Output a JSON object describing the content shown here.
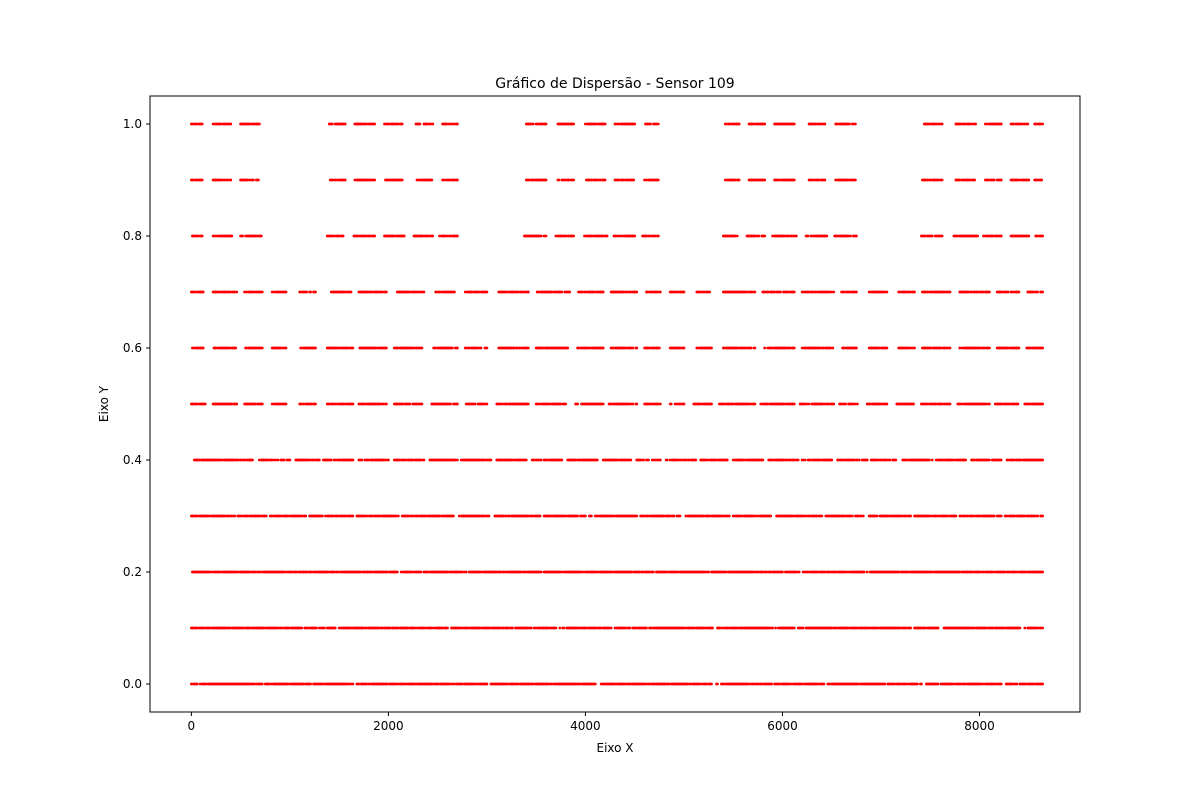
{
  "chart_data": {
    "type": "scatter",
    "title": "Gráfico de Dispersão - Sensor 109",
    "xlabel": "Eixo X",
    "ylabel": "Eixo Y",
    "xlim": [
      -420,
      9020
    ],
    "ylim": [
      -0.05,
      1.05
    ],
    "x_ticks": [
      0,
      2000,
      4000,
      6000,
      8000
    ],
    "x_tick_labels": [
      "0",
      "2000",
      "4000",
      "6000",
      "8000"
    ],
    "y_ticks": [
      0.0,
      0.2,
      0.4,
      0.6,
      0.8,
      1.0
    ],
    "y_tick_labels": [
      "0.0",
      "0.2",
      "0.4",
      "0.6",
      "0.8",
      "1.0"
    ],
    "grid": false,
    "legend": "none",
    "marker_color": "#ff0000",
    "x_extent": [
      0,
      8640
    ],
    "series": [
      {
        "y": 1.0,
        "x_segments": [
          [
            0,
            110
          ],
          [
            220,
            400
          ],
          [
            500,
            690
          ],
          [
            1400,
            1560
          ],
          [
            1660,
            1860
          ],
          [
            1960,
            2140
          ],
          [
            2280,
            2450
          ],
          [
            2550,
            2700
          ],
          [
            3400,
            3600
          ],
          [
            3720,
            3880
          ],
          [
            4000,
            4200
          ],
          [
            4300,
            4500
          ],
          [
            4600,
            4740
          ],
          [
            5420,
            5560
          ],
          [
            5660,
            5820
          ],
          [
            5920,
            6120
          ],
          [
            6260,
            6430
          ],
          [
            6540,
            6740
          ],
          [
            7420,
            7620
          ],
          [
            7760,
            7960
          ],
          [
            8060,
            8220
          ],
          [
            8320,
            8500
          ],
          [
            8560,
            8640
          ]
        ]
      },
      {
        "y": 0.9,
        "x_segments": [
          [
            0,
            110
          ],
          [
            220,
            400
          ],
          [
            500,
            690
          ],
          [
            1400,
            1560
          ],
          [
            1660,
            1860
          ],
          [
            1960,
            2140
          ],
          [
            2280,
            2450
          ],
          [
            2550,
            2700
          ],
          [
            3400,
            3600
          ],
          [
            3720,
            3880
          ],
          [
            4000,
            4200
          ],
          [
            4300,
            4500
          ],
          [
            4600,
            4740
          ],
          [
            5420,
            5560
          ],
          [
            5660,
            5820
          ],
          [
            5920,
            6120
          ],
          [
            6260,
            6430
          ],
          [
            6540,
            6740
          ],
          [
            7420,
            7620
          ],
          [
            7760,
            7960
          ],
          [
            8060,
            8220
          ],
          [
            8320,
            8500
          ],
          [
            8560,
            8640
          ]
        ]
      },
      {
        "y": 0.8,
        "x_segments": [
          [
            0,
            120
          ],
          [
            220,
            430
          ],
          [
            500,
            710
          ],
          [
            1380,
            1560
          ],
          [
            1650,
            1860
          ],
          [
            1960,
            2160
          ],
          [
            2260,
            2450
          ],
          [
            2520,
            2700
          ],
          [
            3380,
            3600
          ],
          [
            3700,
            3880
          ],
          [
            3990,
            4220
          ],
          [
            4290,
            4500
          ],
          [
            4580,
            4740
          ],
          [
            5400,
            5560
          ],
          [
            5640,
            5820
          ],
          [
            5900,
            6140
          ],
          [
            6240,
            6450
          ],
          [
            6520,
            6760
          ],
          [
            7400,
            7620
          ],
          [
            7740,
            7980
          ],
          [
            8040,
            8220
          ],
          [
            8320,
            8500
          ],
          [
            8570,
            8640
          ]
        ]
      },
      {
        "y": 0.7,
        "x_segments": [
          [
            0,
            120
          ],
          [
            220,
            460
          ],
          [
            540,
            720
          ],
          [
            820,
            960
          ],
          [
            1100,
            1260
          ],
          [
            1400,
            1620
          ],
          [
            1700,
            1980
          ],
          [
            2080,
            2360
          ],
          [
            2480,
            2700
          ],
          [
            2780,
            3000
          ],
          [
            3120,
            3420
          ],
          [
            3500,
            3840
          ],
          [
            3920,
            4180
          ],
          [
            4260,
            4520
          ],
          [
            4620,
            4760
          ],
          [
            4860,
            5000
          ],
          [
            5120,
            5280
          ],
          [
            5400,
            5720
          ],
          [
            5800,
            6120
          ],
          [
            6200,
            6520
          ],
          [
            6600,
            6760
          ],
          [
            6880,
            7060
          ],
          [
            7180,
            7340
          ],
          [
            7420,
            7700
          ],
          [
            7800,
            8100
          ],
          [
            8180,
            8400
          ],
          [
            8480,
            8640
          ]
        ]
      },
      {
        "y": 0.6,
        "x_segments": [
          [
            0,
            120
          ],
          [
            220,
            460
          ],
          [
            540,
            720
          ],
          [
            820,
            960
          ],
          [
            1100,
            1260
          ],
          [
            1380,
            1640
          ],
          [
            1700,
            1980
          ],
          [
            2060,
            2340
          ],
          [
            2460,
            2700
          ],
          [
            2780,
            3000
          ],
          [
            3120,
            3420
          ],
          [
            3500,
            3820
          ],
          [
            3920,
            4180
          ],
          [
            4260,
            4520
          ],
          [
            4600,
            4760
          ],
          [
            4860,
            5000
          ],
          [
            5120,
            5280
          ],
          [
            5400,
            5720
          ],
          [
            5800,
            6120
          ],
          [
            6200,
            6520
          ],
          [
            6600,
            6760
          ],
          [
            6880,
            7060
          ],
          [
            7180,
            7340
          ],
          [
            7420,
            7700
          ],
          [
            7800,
            8100
          ],
          [
            8180,
            8400
          ],
          [
            8480,
            8640
          ]
        ]
      },
      {
        "y": 0.5,
        "x_segments": [
          [
            0,
            140
          ],
          [
            220,
            460
          ],
          [
            540,
            720
          ],
          [
            820,
            960
          ],
          [
            1100,
            1260
          ],
          [
            1380,
            1640
          ],
          [
            1700,
            1980
          ],
          [
            2060,
            2340
          ],
          [
            2440,
            2700
          ],
          [
            2780,
            3000
          ],
          [
            3100,
            3420
          ],
          [
            3500,
            3820
          ],
          [
            3900,
            4180
          ],
          [
            4240,
            4520
          ],
          [
            4600,
            4760
          ],
          [
            4860,
            5000
          ],
          [
            5100,
            5280
          ],
          [
            5360,
            5720
          ],
          [
            5780,
            6120
          ],
          [
            6180,
            6520
          ],
          [
            6580,
            6760
          ],
          [
            6860,
            7060
          ],
          [
            7160,
            7340
          ],
          [
            7400,
            7700
          ],
          [
            7780,
            8100
          ],
          [
            8160,
            8400
          ],
          [
            8460,
            8640
          ]
        ]
      },
      {
        "y": 0.4,
        "x_segments": [
          [
            0,
            620
          ],
          [
            680,
            1000
          ],
          [
            1060,
            1300
          ],
          [
            1340,
            1640
          ],
          [
            1700,
            2000
          ],
          [
            2060,
            2360
          ],
          [
            2420,
            2700
          ],
          [
            2740,
            3040
          ],
          [
            3100,
            3400
          ],
          [
            3460,
            3760
          ],
          [
            3820,
            4120
          ],
          [
            4160,
            4460
          ],
          [
            4520,
            4760
          ],
          [
            4820,
            5120
          ],
          [
            5160,
            5440
          ],
          [
            5500,
            5800
          ],
          [
            5860,
            6160
          ],
          [
            6200,
            6500
          ],
          [
            6560,
            6860
          ],
          [
            6900,
            7160
          ],
          [
            7220,
            7520
          ],
          [
            7560,
            7860
          ],
          [
            7920,
            8220
          ],
          [
            8280,
            8640
          ]
        ]
      },
      {
        "y": 0.3,
        "x_segments": [
          [
            0,
            760
          ],
          [
            800,
            1160
          ],
          [
            1200,
            1640
          ],
          [
            1680,
            2100
          ],
          [
            2140,
            2660
          ],
          [
            2720,
            3020
          ],
          [
            3080,
            3540
          ],
          [
            3580,
            4000
          ],
          [
            4040,
            4520
          ],
          [
            4560,
            4960
          ],
          [
            5020,
            5460
          ],
          [
            5500,
            5880
          ],
          [
            5940,
            6400
          ],
          [
            6440,
            6820
          ],
          [
            6880,
            7300
          ],
          [
            7340,
            7760
          ],
          [
            7800,
            8220
          ],
          [
            8260,
            8640
          ]
        ]
      },
      {
        "y": 0.2,
        "x_segments": [
          [
            0,
            8640
          ]
        ]
      },
      {
        "y": 0.1,
        "x_segments": [
          [
            0,
            1460
          ],
          [
            1500,
            2600
          ],
          [
            2640,
            3700
          ],
          [
            3740,
            4260
          ],
          [
            4300,
            5300
          ],
          [
            5340,
            6120
          ],
          [
            6160,
            7300
          ],
          [
            7340,
            7580
          ],
          [
            7640,
            8420
          ],
          [
            8460,
            8640
          ]
        ]
      },
      {
        "y": 0.0,
        "x_segments": [
          [
            0,
            1640
          ],
          [
            1680,
            3000
          ],
          [
            3040,
            4100
          ],
          [
            4140,
            5340
          ],
          [
            5380,
            6420
          ],
          [
            6460,
            7420
          ],
          [
            7460,
            8220
          ],
          [
            8260,
            8640
          ]
        ]
      }
    ]
  }
}
